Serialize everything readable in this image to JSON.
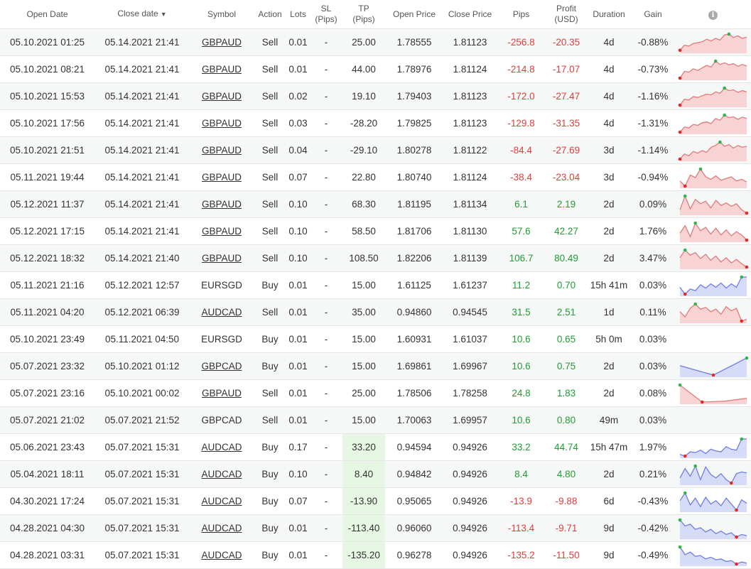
{
  "headers": {
    "open_date": "Open Date",
    "close_date": "Close date",
    "sort_caret": "▼",
    "symbol": "Symbol",
    "action": "Action",
    "lots": "Lots",
    "sl_line1": "SL",
    "sl_line2": "(Pips)",
    "tp_line1": "TP",
    "tp_line2": "(Pips)",
    "open_price": "Open Price",
    "close_price": "Close Price",
    "pips": "Pips",
    "profit_line1": "Profit",
    "profit_line2": "(USD)",
    "duration": "Duration",
    "gain": "Gain",
    "info_icon": "i"
  },
  "colors": {
    "negative": "#e33b3b",
    "positive": "#1f9e32",
    "tp_highlight": "#e6f7e3",
    "spark_sell_line": "#e07b7b",
    "spark_sell_fill": "#f7d3d3",
    "spark_buy_line": "#6f7fe0",
    "spark_buy_fill": "#d6dcf7",
    "spark_max_dot": "#2fb34a",
    "spark_min_dot": "#e02a2a"
  },
  "rows": [
    {
      "open_date": "05.10.2021 01:25",
      "close_date": "05.14.2021 21:41",
      "symbol": "GBPAUD",
      "symbol_link": true,
      "action": "Sell",
      "lots": "0.01",
      "sl": "-",
      "tp": "25.00",
      "open_price": "1.78555",
      "close_price": "1.81123",
      "pips": "-256.8",
      "profit": "-20.35",
      "duration": "4d",
      "gain": "-0.88%",
      "sentiment": "neg",
      "tp_hl": false,
      "spark": {
        "type": "sell",
        "points": [
          0.05,
          0.35,
          0.3,
          0.45,
          0.5,
          0.55,
          0.7,
          0.6,
          0.75,
          0.65,
          0.95,
          1.0,
          0.8,
          0.9,
          0.75,
          0.82
        ]
      }
    },
    {
      "open_date": "05.10.2021 08:21",
      "close_date": "05.14.2021 21:41",
      "symbol": "GBPAUD",
      "symbol_link": true,
      "action": "Sell",
      "lots": "0.01",
      "sl": "-",
      "tp": "44.00",
      "open_price": "1.78976",
      "close_price": "1.81124",
      "pips": "-214.8",
      "profit": "-17.07",
      "duration": "4d",
      "gain": "-0.73%",
      "sentiment": "neg",
      "tp_hl": false,
      "spark": {
        "type": "sell",
        "points": [
          0.0,
          0.4,
          0.35,
          0.55,
          0.45,
          0.6,
          0.75,
          0.65,
          1.0,
          0.8,
          0.9,
          0.78,
          0.85,
          0.7,
          0.8,
          0.72
        ]
      }
    },
    {
      "open_date": "05.10.2021 15:53",
      "close_date": "05.14.2021 21:41",
      "symbol": "GBPAUD",
      "symbol_link": true,
      "action": "Sell",
      "lots": "0.02",
      "sl": "-",
      "tp": "19.10",
      "open_price": "1.79403",
      "close_price": "1.81123",
      "pips": "-172.0",
      "profit": "-27.47",
      "duration": "4d",
      "gain": "-1.16%",
      "sentiment": "neg",
      "tp_hl": false,
      "spark": {
        "type": "sell",
        "points": [
          0.0,
          0.35,
          0.3,
          0.5,
          0.45,
          0.55,
          0.65,
          0.6,
          0.78,
          0.7,
          1.0,
          0.85,
          0.9,
          0.75,
          0.85,
          0.78
        ]
      }
    },
    {
      "open_date": "05.10.2021 17:56",
      "close_date": "05.14.2021 21:41",
      "symbol": "GBPAUD",
      "symbol_link": true,
      "action": "Sell",
      "lots": "0.03",
      "sl": "-",
      "tp": "-28.20",
      "open_price": "1.79825",
      "close_price": "1.81123",
      "pips": "-129.8",
      "profit": "-31.35",
      "duration": "4d",
      "gain": "-1.31%",
      "sentiment": "neg",
      "tp_hl": false,
      "spark": {
        "type": "sell",
        "points": [
          0.0,
          0.3,
          0.25,
          0.45,
          0.4,
          0.55,
          0.6,
          0.5,
          0.8,
          0.7,
          1.0,
          0.85,
          0.9,
          0.75,
          0.88,
          0.8
        ]
      }
    },
    {
      "open_date": "05.10.2021 21:51",
      "close_date": "05.14.2021 21:41",
      "symbol": "GBPAUD",
      "symbol_link": true,
      "action": "Sell",
      "lots": "0.04",
      "sl": "-",
      "tp": "-29.10",
      "open_price": "1.80278",
      "close_price": "1.81122",
      "pips": "-84.4",
      "profit": "-27.69",
      "duration": "3d",
      "gain": "-1.14%",
      "sentiment": "neg",
      "tp_hl": false,
      "spark": {
        "type": "sell",
        "points": [
          0.0,
          0.3,
          0.2,
          0.45,
          0.35,
          0.5,
          0.4,
          0.7,
          0.8,
          1.0,
          0.75,
          0.85,
          0.65,
          0.8,
          0.7,
          0.75
        ]
      }
    },
    {
      "open_date": "05.11.2021 19:44",
      "close_date": "05.14.2021 21:41",
      "symbol": "GBPAUD",
      "symbol_link": true,
      "action": "Sell",
      "lots": "0.07",
      "sl": "-",
      "tp": "22.80",
      "open_price": "1.80740",
      "close_price": "1.81124",
      "pips": "-38.4",
      "profit": "-23.04",
      "duration": "3d",
      "gain": "-0.94%",
      "sentiment": "neg",
      "tp_hl": false,
      "spark": {
        "type": "sell",
        "points": [
          0.3,
          0.0,
          0.65,
          0.5,
          1.0,
          0.55,
          0.4,
          0.6,
          0.35,
          0.45,
          0.55,
          0.3,
          0.4,
          0.25
        ]
      }
    },
    {
      "open_date": "05.12.2021 11:37",
      "close_date": "05.14.2021 21:41",
      "symbol": "GBPAUD",
      "symbol_link": true,
      "action": "Sell",
      "lots": "0.10",
      "sl": "-",
      "tp": "68.30",
      "open_price": "1.81195",
      "close_price": "1.81134",
      "pips": "6.1",
      "profit": "2.19",
      "duration": "2d",
      "gain": "0.09%",
      "sentiment": "pos",
      "tp_hl": false,
      "spark": {
        "type": "sell",
        "points": [
          0.2,
          1.0,
          0.25,
          0.8,
          0.55,
          0.7,
          0.3,
          0.75,
          0.45,
          0.6,
          0.4,
          0.55,
          0.2,
          0.0
        ]
      }
    },
    {
      "open_date": "05.12.2021 17:15",
      "close_date": "05.14.2021 21:41",
      "symbol": "GBPAUD",
      "symbol_link": true,
      "action": "Sell",
      "lots": "0.10",
      "sl": "-",
      "tp": "58.50",
      "open_price": "1.81706",
      "close_price": "1.81130",
      "pips": "57.6",
      "profit": "42.27",
      "duration": "2d",
      "gain": "1.76%",
      "sentiment": "pos",
      "tp_hl": false,
      "spark": {
        "type": "sell",
        "points": [
          0.4,
          0.85,
          0.2,
          1.0,
          0.55,
          0.75,
          0.35,
          0.7,
          0.3,
          0.6,
          0.25,
          0.5,
          0.3,
          0.0
        ]
      }
    },
    {
      "open_date": "05.12.2021 18:32",
      "close_date": "05.14.2021 21:40",
      "symbol": "GBPAUD",
      "symbol_link": true,
      "action": "Sell",
      "lots": "0.10",
      "sl": "-",
      "tp": "108.50",
      "open_price": "1.82206",
      "close_price": "1.81139",
      "pips": "106.7",
      "profit": "80.49",
      "duration": "2d",
      "gain": "3.47%",
      "sentiment": "pos",
      "tp_hl": false,
      "spark": {
        "type": "sell",
        "points": [
          0.55,
          1.0,
          0.7,
          0.85,
          0.5,
          0.75,
          0.4,
          0.65,
          0.3,
          0.55,
          0.25,
          0.45,
          0.2,
          0.0
        ]
      }
    },
    {
      "open_date": "05.11.2021 21:16",
      "close_date": "05.12.2021 12:57",
      "symbol": "EURSGD",
      "symbol_link": false,
      "action": "Buy",
      "lots": "0.01",
      "sl": "-",
      "tp": "15.00",
      "open_price": "1.61125",
      "close_price": "1.61237",
      "pips": "11.2",
      "profit": "0.70",
      "duration": "15h 41m",
      "gain": "0.03%",
      "sentiment": "pos",
      "tp_hl": false,
      "spark": {
        "type": "buy",
        "points": [
          0.4,
          0.0,
          0.3,
          0.2,
          0.55,
          0.35,
          0.6,
          0.4,
          0.65,
          0.35,
          0.6,
          0.4,
          1.0,
          1.0
        ]
      }
    },
    {
      "open_date": "05.11.2021 04:20",
      "close_date": "05.12.2021 06:39",
      "symbol": "AUDCAD",
      "symbol_link": true,
      "action": "Sell",
      "lots": "0.01",
      "sl": "-",
      "tp": "35.00",
      "open_price": "0.94860",
      "close_price": "0.94545",
      "pips": "31.5",
      "profit": "2.51",
      "duration": "1d",
      "gain": "0.11%",
      "sentiment": "pos",
      "tp_hl": false,
      "spark": {
        "type": "sell",
        "points": [
          0.55,
          0.25,
          0.75,
          1.0,
          0.7,
          0.8,
          0.55,
          0.7,
          0.4,
          0.85,
          0.6,
          0.75,
          0.0,
          0.1
        ]
      }
    },
    {
      "open_date": "05.10.2021 23:49",
      "close_date": "05.11.2021 04:50",
      "symbol": "EURSGD",
      "symbol_link": false,
      "action": "Buy",
      "lots": "0.01",
      "sl": "-",
      "tp": "15.00",
      "open_price": "1.60931",
      "close_price": "1.61037",
      "pips": "10.6",
      "profit": "0.65",
      "duration": "5h 0m",
      "gain": "0.03%",
      "sentiment": "pos",
      "tp_hl": false,
      "spark": null
    },
    {
      "open_date": "05.07.2021 23:32",
      "close_date": "05.10.2021 01:12",
      "symbol": "GBPCAD",
      "symbol_link": true,
      "action": "Buy",
      "lots": "0.01",
      "sl": "-",
      "tp": "15.00",
      "open_price": "1.69861",
      "close_price": "1.69967",
      "pips": "10.6",
      "profit": "0.75",
      "duration": "2d",
      "gain": "0.03%",
      "sentiment": "pos",
      "tp_hl": false,
      "spark": {
        "type": "buy",
        "points": [
          0.55,
          0.0,
          1.0
        ]
      }
    },
    {
      "open_date": "05.07.2021 23:16",
      "close_date": "05.10.2021 00:02",
      "symbol": "GBPAUD",
      "symbol_link": true,
      "action": "Sell",
      "lots": "0.01",
      "sl": "-",
      "tp": "25.00",
      "open_price": "1.78506",
      "close_price": "1.78258",
      "pips": "24.8",
      "profit": "1.83",
      "duration": "2d",
      "gain": "0.08%",
      "sentiment": "pos",
      "tp_hl": false,
      "spark": {
        "type": "sell",
        "points": [
          1.0,
          0.0,
          0.05,
          0.22
        ]
      }
    },
    {
      "open_date": "05.07.2021 21:02",
      "close_date": "05.07.2021 21:52",
      "symbol": "GBPCAD",
      "symbol_link": false,
      "action": "Sell",
      "lots": "0.01",
      "sl": "-",
      "tp": "15.00",
      "open_price": "1.70063",
      "close_price": "1.69957",
      "pips": "10.6",
      "profit": "0.80",
      "duration": "49m",
      "gain": "0.03%",
      "sentiment": "pos",
      "tp_hl": false,
      "spark": null
    },
    {
      "open_date": "05.06.2021 23:43",
      "close_date": "05.07.2021 15:31",
      "symbol": "AUDCAD",
      "symbol_link": true,
      "action": "Buy",
      "lots": "0.17",
      "sl": "-",
      "tp": "33.20",
      "open_price": "0.94594",
      "close_price": "0.94926",
      "pips": "33.2",
      "profit": "44.74",
      "duration": "15h 47m",
      "gain": "1.97%",
      "sentiment": "pos",
      "tp_hl": true,
      "spark": {
        "type": "buy",
        "points": [
          0.1,
          0.0,
          0.25,
          0.2,
          0.35,
          0.15,
          0.4,
          0.3,
          0.25,
          0.55,
          0.4,
          0.35,
          1.0,
          1.0
        ]
      }
    },
    {
      "open_date": "05.04.2021 18:11",
      "close_date": "05.07.2021 15:31",
      "symbol": "AUDCAD",
      "symbol_link": true,
      "action": "Buy",
      "lots": "0.10",
      "sl": "-",
      "tp": "8.40",
      "open_price": "0.94842",
      "close_price": "0.94926",
      "pips": "8.4",
      "profit": "4.80",
      "duration": "2d",
      "gain": "0.21%",
      "sentiment": "pos",
      "tp_hl": true,
      "spark": {
        "type": "buy",
        "points": [
          0.3,
          0.85,
          0.4,
          1.0,
          0.2,
          0.95,
          0.5,
          0.3,
          0.55,
          0.2,
          0.0,
          0.55,
          0.65,
          0.6
        ]
      }
    },
    {
      "open_date": "04.30.2021 17:24",
      "close_date": "05.07.2021 15:31",
      "symbol": "AUDCAD",
      "symbol_link": true,
      "action": "Buy",
      "lots": "0.07",
      "sl": "-",
      "tp": "-13.90",
      "open_price": "0.95065",
      "close_price": "0.94926",
      "pips": "-13.9",
      "profit": "-9.88",
      "duration": "6d",
      "gain": "-0.43%",
      "sentiment": "neg",
      "tp_hl": true,
      "spark": {
        "type": "buy",
        "points": [
          0.55,
          1.0,
          0.3,
          0.7,
          0.2,
          0.75,
          0.35,
          0.55,
          0.25,
          0.7,
          0.35,
          0.0,
          0.6,
          0.4
        ]
      }
    },
    {
      "open_date": "04.28.2021 04:30",
      "close_date": "05.07.2021 15:31",
      "symbol": "AUDCAD",
      "symbol_link": true,
      "action": "Buy",
      "lots": "0.01",
      "sl": "-",
      "tp": "-113.40",
      "open_price": "0.96060",
      "close_price": "0.94926",
      "pips": "-113.4",
      "profit": "-9.71",
      "duration": "9d",
      "gain": "-0.42%",
      "sentiment": "neg",
      "tp_hl": true,
      "spark": {
        "type": "buy",
        "points": [
          1.0,
          0.65,
          0.75,
          0.45,
          0.55,
          0.3,
          0.45,
          0.2,
          0.35,
          0.15,
          0.25,
          0.0,
          0.15,
          0.08
        ]
      }
    },
    {
      "open_date": "04.28.2021 03:31",
      "close_date": "05.07.2021 15:31",
      "symbol": "AUDCAD",
      "symbol_link": true,
      "action": "Buy",
      "lots": "0.01",
      "sl": "-",
      "tp": "-135.20",
      "open_price": "0.96278",
      "close_price": "0.94926",
      "pips": "-135.2",
      "profit": "-11.50",
      "duration": "9d",
      "gain": "-0.49%",
      "sentiment": "neg",
      "tp_hl": true,
      "spark": {
        "type": "buy",
        "points": [
          1.0,
          0.55,
          0.7,
          0.45,
          0.5,
          0.3,
          0.4,
          0.25,
          0.3,
          0.15,
          0.2,
          0.0,
          0.12,
          0.05
        ]
      }
    }
  ]
}
